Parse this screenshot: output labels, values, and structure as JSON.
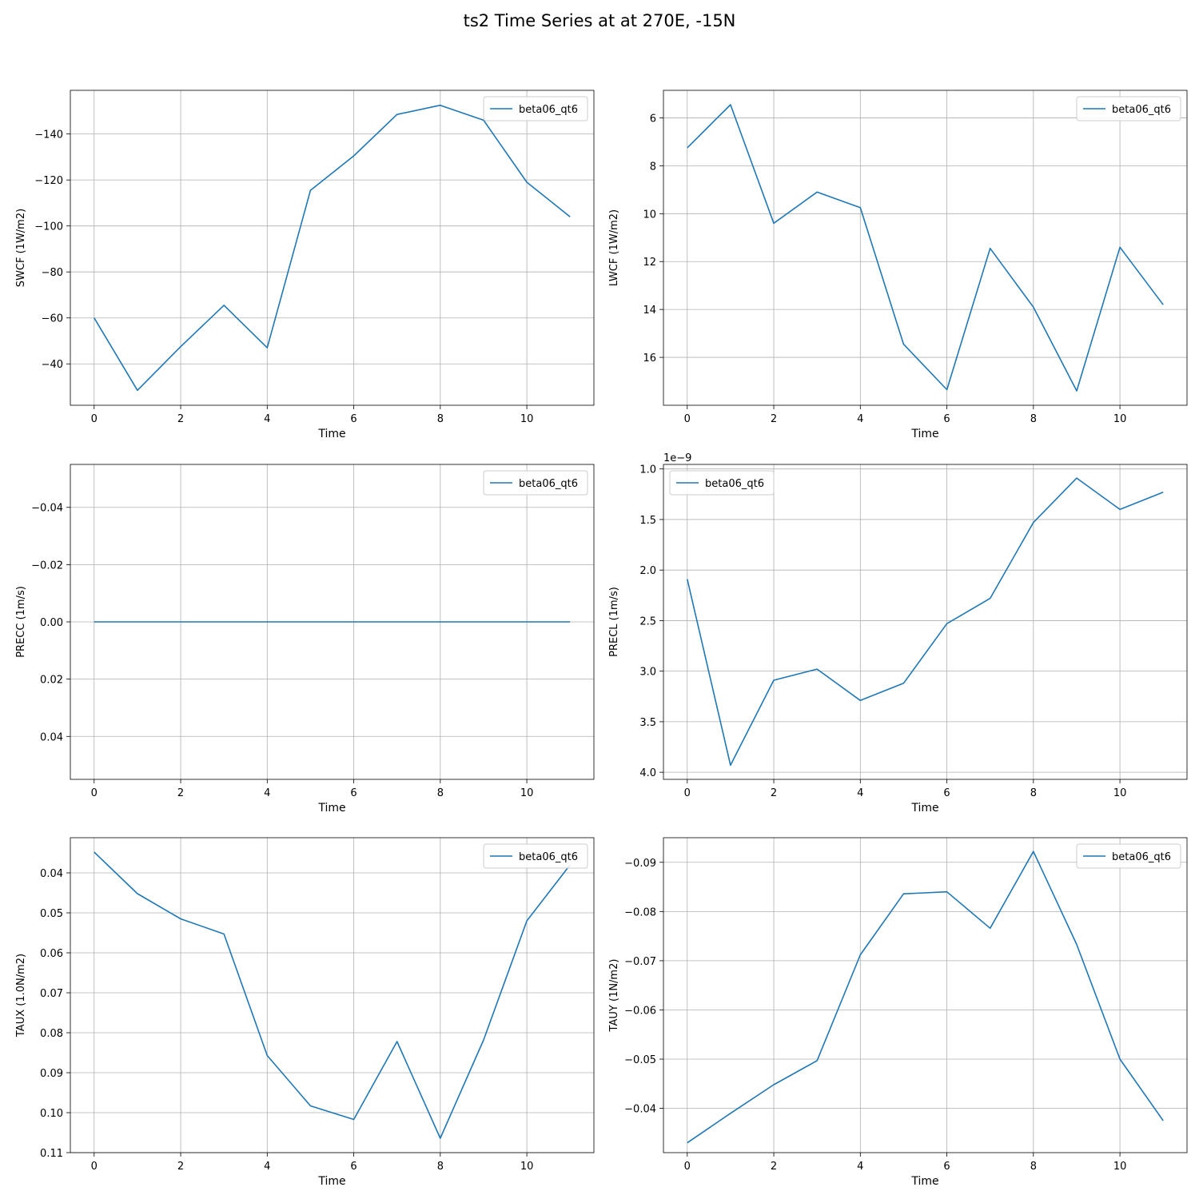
{
  "figure": {
    "title": "ts2 Time Series at at 270E, -15N"
  },
  "chart_data": [
    {
      "type": "line",
      "title": "",
      "xlabel": "Time",
      "ylabel": "SWCF (1W/m2)",
      "x": [
        0,
        1,
        2,
        3,
        4,
        5,
        6,
        7,
        8,
        9,
        10,
        11
      ],
      "series": [
        {
          "name": "beta06_qt6",
          "color": "#1f77b4",
          "values": [
            -60.0,
            -28.5,
            -47.5,
            -65.5,
            -47.0,
            -115.5,
            -130.5,
            -148.5,
            -152.5,
            -146.0,
            -119.0,
            -104.0
          ]
        }
      ],
      "xlim": [
        -0.55,
        11.55
      ],
      "ylim": [
        -22.0,
        -159.0
      ],
      "inverted_y": true,
      "xticks": [
        0,
        2,
        4,
        6,
        8,
        10
      ],
      "yticks": [
        -140,
        -120,
        -100,
        -80,
        -60,
        -40
      ],
      "ytick_labels": [
        "−140",
        "−120",
        "−100",
        "−80",
        "−60",
        "−40"
      ],
      "grid": true,
      "legend": "upper right"
    },
    {
      "type": "line",
      "title": "",
      "xlabel": "Time",
      "ylabel": "LWCF (1W/m2)",
      "x": [
        0,
        1,
        2,
        3,
        4,
        5,
        6,
        7,
        8,
        9,
        10,
        11
      ],
      "series": [
        {
          "name": "beta06_qt6",
          "color": "#1f77b4",
          "values": [
            7.25,
            5.45,
            10.4,
            9.1,
            9.75,
            15.45,
            17.35,
            11.45,
            13.9,
            17.4,
            11.4,
            13.8
          ]
        }
      ],
      "xlim": [
        -0.55,
        11.55
      ],
      "ylim": [
        18.0,
        4.85
      ],
      "inverted_y": true,
      "xticks": [
        0,
        2,
        4,
        6,
        8,
        10
      ],
      "yticks": [
        6,
        8,
        10,
        12,
        14,
        16
      ],
      "ytick_labels": [
        "6",
        "8",
        "10",
        "12",
        "14",
        "16"
      ],
      "grid": true,
      "legend": "upper right"
    },
    {
      "type": "line",
      "title": "",
      "xlabel": "Time",
      "ylabel": "PRECC (1m/s)",
      "x": [
        0,
        1,
        2,
        3,
        4,
        5,
        6,
        7,
        8,
        9,
        10,
        11
      ],
      "series": [
        {
          "name": "beta06_qt6",
          "color": "#1f77b4",
          "values": [
            0,
            0,
            0,
            0,
            0,
            0,
            0,
            0,
            0,
            0,
            0,
            0
          ]
        }
      ],
      "xlim": [
        -0.55,
        11.55
      ],
      "ylim": [
        0.055,
        -0.055
      ],
      "inverted_y": true,
      "xticks": [
        0,
        2,
        4,
        6,
        8,
        10
      ],
      "yticks": [
        -0.04,
        -0.02,
        0.0,
        0.02,
        0.04
      ],
      "ytick_labels": [
        "−0.04",
        "−0.02",
        "0.00",
        "0.02",
        "0.04"
      ],
      "grid": true,
      "legend": "upper right"
    },
    {
      "type": "line",
      "title": "",
      "xlabel": "Time",
      "ylabel": "PRECL (1m/s)",
      "y_offset_label": "1e−9",
      "x": [
        0,
        1,
        2,
        3,
        4,
        5,
        6,
        7,
        8,
        9,
        10,
        11
      ],
      "series": [
        {
          "name": "beta06_qt6",
          "color": "#1f77b4",
          "values": [
            2.09,
            3.93,
            3.09,
            2.98,
            3.29,
            3.12,
            2.53,
            2.28,
            1.53,
            1.09,
            1.4,
            1.23
          ]
        }
      ],
      "xlim": [
        -0.55,
        11.55
      ],
      "ylim": [
        4.07,
        0.955
      ],
      "inverted_y": true,
      "xticks": [
        0,
        2,
        4,
        6,
        8,
        10
      ],
      "yticks": [
        1.0,
        1.5,
        2.0,
        2.5,
        3.0,
        3.5,
        4.0
      ],
      "ytick_labels": [
        "1.0",
        "1.5",
        "2.0",
        "2.5",
        "3.0",
        "3.5",
        "4.0"
      ],
      "grid": true,
      "legend": "upper left"
    },
    {
      "type": "line",
      "title": "",
      "xlabel": "Time",
      "ylabel": "TAUX (1.0N/m2)",
      "x": [
        0,
        1,
        2,
        3,
        4,
        5,
        6,
        7,
        8,
        9,
        10,
        11
      ],
      "series": [
        {
          "name": "beta06_qt6",
          "color": "#1f77b4",
          "values": [
            0.0348,
            0.0452,
            0.0515,
            0.0553,
            0.0857,
            0.0983,
            0.1017,
            0.0822,
            0.1064,
            0.0818,
            0.052,
            0.038
          ]
        }
      ],
      "xlim": [
        -0.55,
        11.55
      ],
      "ylim": [
        0.11,
        0.0312
      ],
      "inverted_y": true,
      "xticks": [
        0,
        2,
        4,
        6,
        8,
        10
      ],
      "yticks": [
        0.04,
        0.05,
        0.06,
        0.07,
        0.08,
        0.09,
        0.1,
        0.11
      ],
      "ytick_labels": [
        "0.04",
        "0.05",
        "0.06",
        "0.07",
        "0.08",
        "0.09",
        "0.10",
        "0.11"
      ],
      "grid": true,
      "legend": "upper right"
    },
    {
      "type": "line",
      "title": "",
      "xlabel": "Time",
      "ylabel": "TAUY (1N/m2)",
      "x": [
        0,
        1,
        2,
        3,
        4,
        5,
        6,
        7,
        8,
        9,
        10,
        11
      ],
      "series": [
        {
          "name": "beta06_qt6",
          "color": "#1f77b4",
          "values": [
            -0.033,
            -0.039,
            -0.0448,
            -0.0497,
            -0.0712,
            -0.0836,
            -0.084,
            -0.0766,
            -0.0922,
            -0.0733,
            -0.05,
            -0.0375
          ]
        }
      ],
      "xlim": [
        -0.55,
        11.55
      ],
      "ylim": [
        -0.031,
        -0.095
      ],
      "inverted_y": true,
      "xticks": [
        0,
        2,
        4,
        6,
        8,
        10
      ],
      "yticks": [
        -0.09,
        -0.08,
        -0.07,
        -0.06,
        -0.05,
        -0.04
      ],
      "ytick_labels": [
        "−0.09",
        "−0.08",
        "−0.07",
        "−0.06",
        "−0.05",
        "−0.04"
      ],
      "grid": true,
      "legend": "upper right"
    }
  ]
}
